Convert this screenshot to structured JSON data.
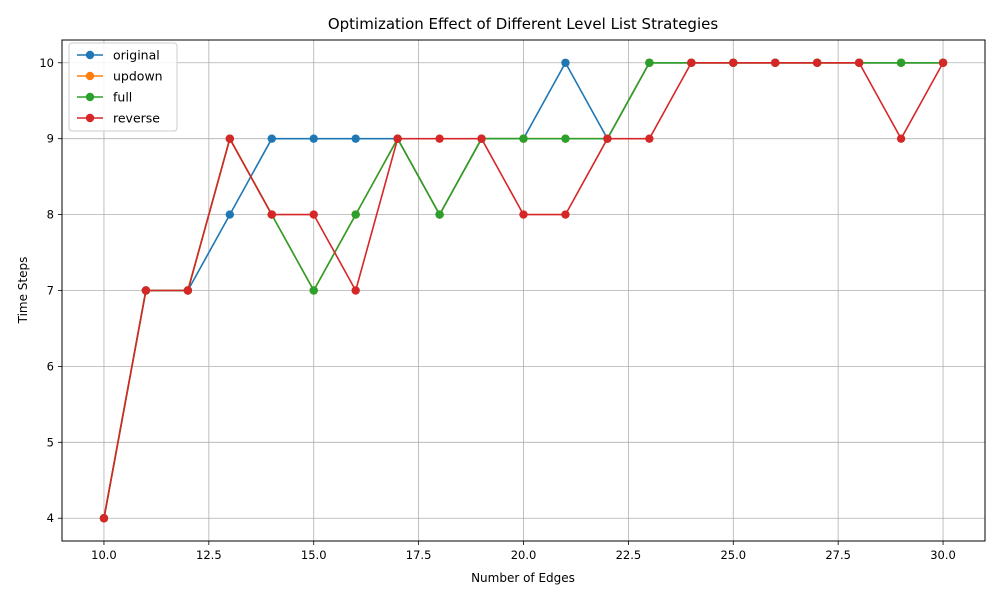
{
  "chart_data": {
    "type": "line",
    "title": "Optimization Effect of Different Level List Strategies",
    "xlabel": "Number of Edges",
    "ylabel": "Time Steps",
    "xlim": [
      9.0,
      31.0
    ],
    "ylim": [
      3.7,
      10.3
    ],
    "xticks": [
      10.0,
      12.5,
      15.0,
      17.5,
      20.0,
      22.5,
      25.0,
      27.5,
      30.0
    ],
    "xtick_labels": [
      "10.0",
      "12.5",
      "15.0",
      "17.5",
      "20.0",
      "22.5",
      "25.0",
      "27.5",
      "30.0"
    ],
    "yticks": [
      4,
      5,
      6,
      7,
      8,
      9,
      10
    ],
    "ytick_labels": [
      "4",
      "5",
      "6",
      "7",
      "8",
      "9",
      "10"
    ],
    "grid": true,
    "legend_position": "top-left",
    "x": [
      10,
      11,
      12,
      13,
      14,
      15,
      16,
      17,
      18,
      19,
      20,
      21,
      22,
      23,
      24,
      25,
      26,
      27,
      28,
      29,
      30
    ],
    "series": [
      {
        "name": "original",
        "color": "#1f77b4",
        "values": [
          4,
          7,
          7,
          8,
          9,
          9,
          9,
          9,
          8,
          9,
          9,
          10,
          9,
          10,
          10,
          10,
          10,
          10,
          10,
          10,
          10
        ]
      },
      {
        "name": "updown",
        "color": "#ff7f0e",
        "values": [
          4,
          7,
          7,
          9,
          8,
          7,
          8,
          9,
          8,
          9,
          9,
          9,
          9,
          10,
          10,
          10,
          10,
          10,
          10,
          10,
          10
        ]
      },
      {
        "name": "full",
        "color": "#2ca02c",
        "values": [
          4,
          7,
          7,
          9,
          8,
          7,
          8,
          9,
          8,
          9,
          9,
          9,
          9,
          10,
          10,
          10,
          10,
          10,
          10,
          10,
          10
        ]
      },
      {
        "name": "reverse",
        "color": "#d62728",
        "values": [
          4,
          7,
          7,
          9,
          8,
          8,
          7,
          9,
          9,
          9,
          8,
          8,
          9,
          9,
          10,
          10,
          10,
          10,
          10,
          9,
          10
        ]
      }
    ]
  }
}
